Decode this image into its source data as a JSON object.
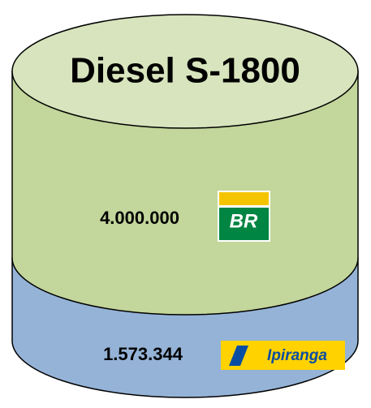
{
  "title": "Diesel S-1800",
  "segments": [
    {
      "value": "4.000.000",
      "brand": "BR"
    },
    {
      "value": "1.573.344",
      "brand": "Ipiranga"
    }
  ]
}
